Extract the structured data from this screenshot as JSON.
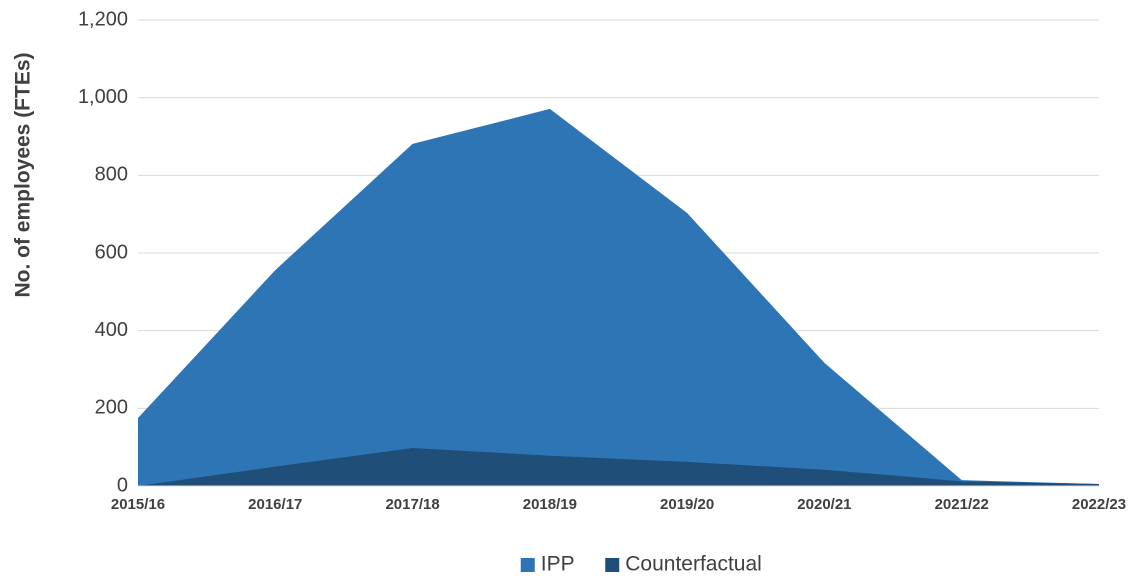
{
  "chart_data": {
    "type": "area",
    "y_label": "No. of employees (FTEs)",
    "categories": [
      "2015/16",
      "2016/17",
      "2017/18",
      "2018/19",
      "2019/20",
      "2020/21",
      "2021/22",
      "2022/23"
    ],
    "series": [
      {
        "name": "IPP",
        "color": "#2e75b6",
        "values": [
          175,
          556,
          881,
          971,
          703,
          317,
          15,
          5
        ]
      },
      {
        "name": "Counterfactual",
        "color": "#1f4e79",
        "values": [
          0,
          50,
          98,
          78,
          62,
          42,
          12,
          5
        ]
      }
    ],
    "ylim": [
      0,
      1200
    ],
    "yticks": [
      0,
      200,
      400,
      600,
      800,
      {
        "value": 1000,
        "label": "1,000"
      },
      {
        "value": 1200,
        "label": "1,200"
      }
    ],
    "grid": true,
    "legend": "bottom"
  }
}
